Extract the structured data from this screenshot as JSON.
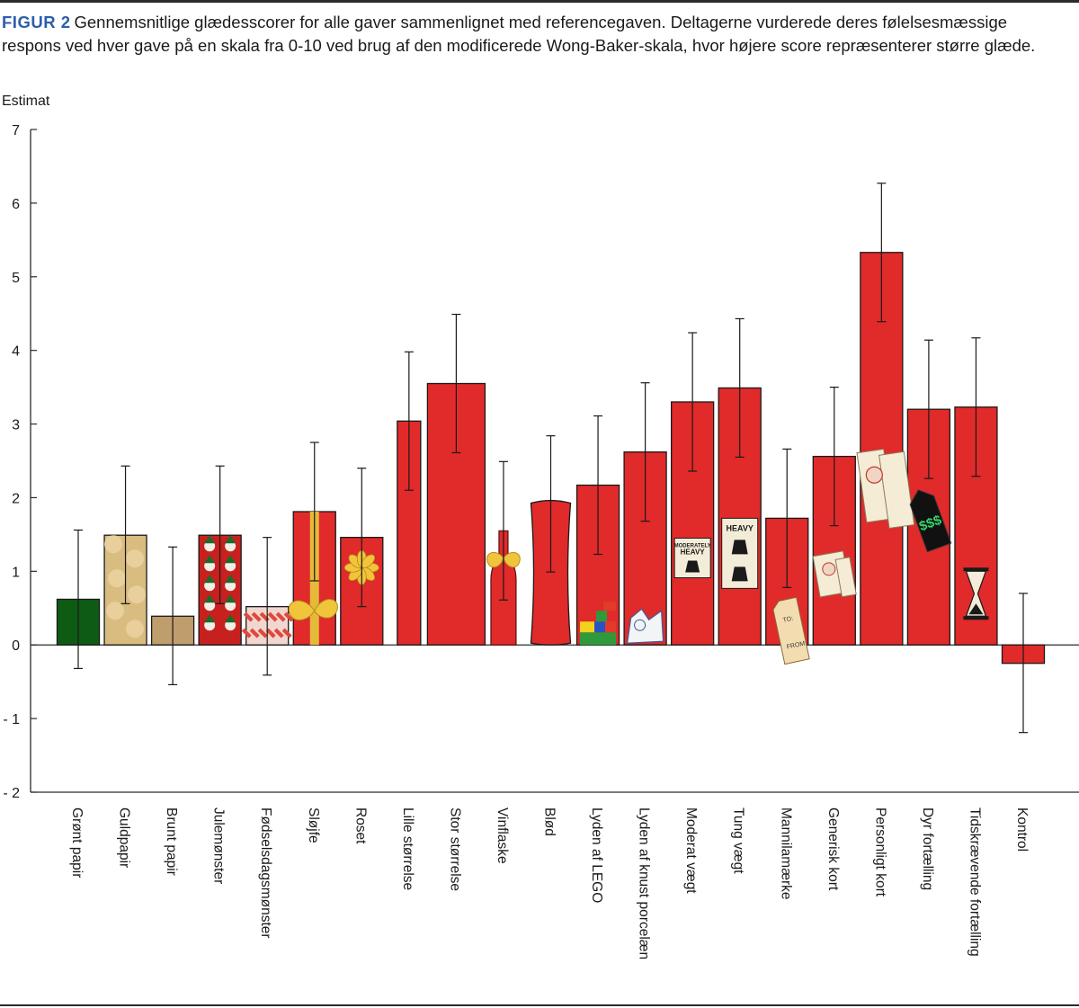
{
  "caption": {
    "label": "FIGUR 2",
    "text": "Gennemsnitlige glædesscorer for alle gaver sammenlignet med referencegaven. Deltagerne vurderede deres følelsesmæssige respons ved hver gave på en skala fra 0-10 ved brug af den modificerede Wong-Baker-skala, hvor højere score repræsenterer større glæde."
  },
  "chart_data": {
    "type": "bar",
    "ylabel": "Estimat",
    "ylim": [
      -2,
      7
    ],
    "yticks": [
      7,
      6,
      5,
      4,
      3,
      2,
      1,
      0,
      -1,
      -2
    ],
    "ytick_labels": [
      "7",
      "6",
      "5",
      "4",
      "3",
      "2",
      "1",
      "0",
      "- 1",
      "- 2"
    ],
    "categories": [
      "Grønt papir",
      "Guldpapir",
      "Brunt papir",
      "Julemønster",
      "Fødselsdagsmønster",
      "Sløjfe",
      "Roset",
      "Lille størrelse",
      "Stor størrelse",
      "Vinflaske",
      "Blød",
      "Lyden af LEGO",
      "Lyden af knust porcelæn",
      "Moderat vægt",
      "Tung vægt",
      "Mannilamærke",
      "Generisk kort",
      "Personligt kort",
      "Dyr fortælling",
      "Tidskrævende fortælling",
      "Kontrol"
    ],
    "values": [
      0.62,
      1.49,
      0.39,
      1.49,
      0.52,
      1.81,
      1.46,
      3.04,
      3.55,
      1.55,
      1.95,
      2.17,
      2.62,
      3.3,
      3.49,
      1.72,
      2.56,
      5.33,
      3.2,
      3.23,
      -0.25
    ],
    "error_low": [
      -0.32,
      0.56,
      -0.54,
      0.56,
      -0.41,
      0.87,
      0.52,
      2.1,
      2.61,
      0.61,
      0.99,
      1.23,
      1.68,
      2.36,
      2.55,
      0.78,
      1.62,
      4.39,
      2.26,
      2.29,
      -1.19
    ],
    "error_high": [
      1.56,
      2.43,
      1.33,
      2.43,
      1.46,
      2.75,
      2.4,
      3.98,
      4.49,
      2.49,
      2.84,
      3.11,
      3.56,
      4.24,
      4.43,
      2.66,
      3.5,
      6.27,
      4.14,
      4.17,
      0.7
    ],
    "colors": {
      "red": "#e12a2a",
      "green": "#0e5c14",
      "gold": "#d9bc7f",
      "brown": "#bf9d6c",
      "axis": "#2b2b2b"
    },
    "illustration_text": {
      "moderately_heavy_1": "MODERATELY",
      "moderately_heavy_2": "HEAVY",
      "heavy": "HEAVY",
      "tag_to": "TO:",
      "tag_from": "FROM:",
      "price": "$$$"
    }
  }
}
